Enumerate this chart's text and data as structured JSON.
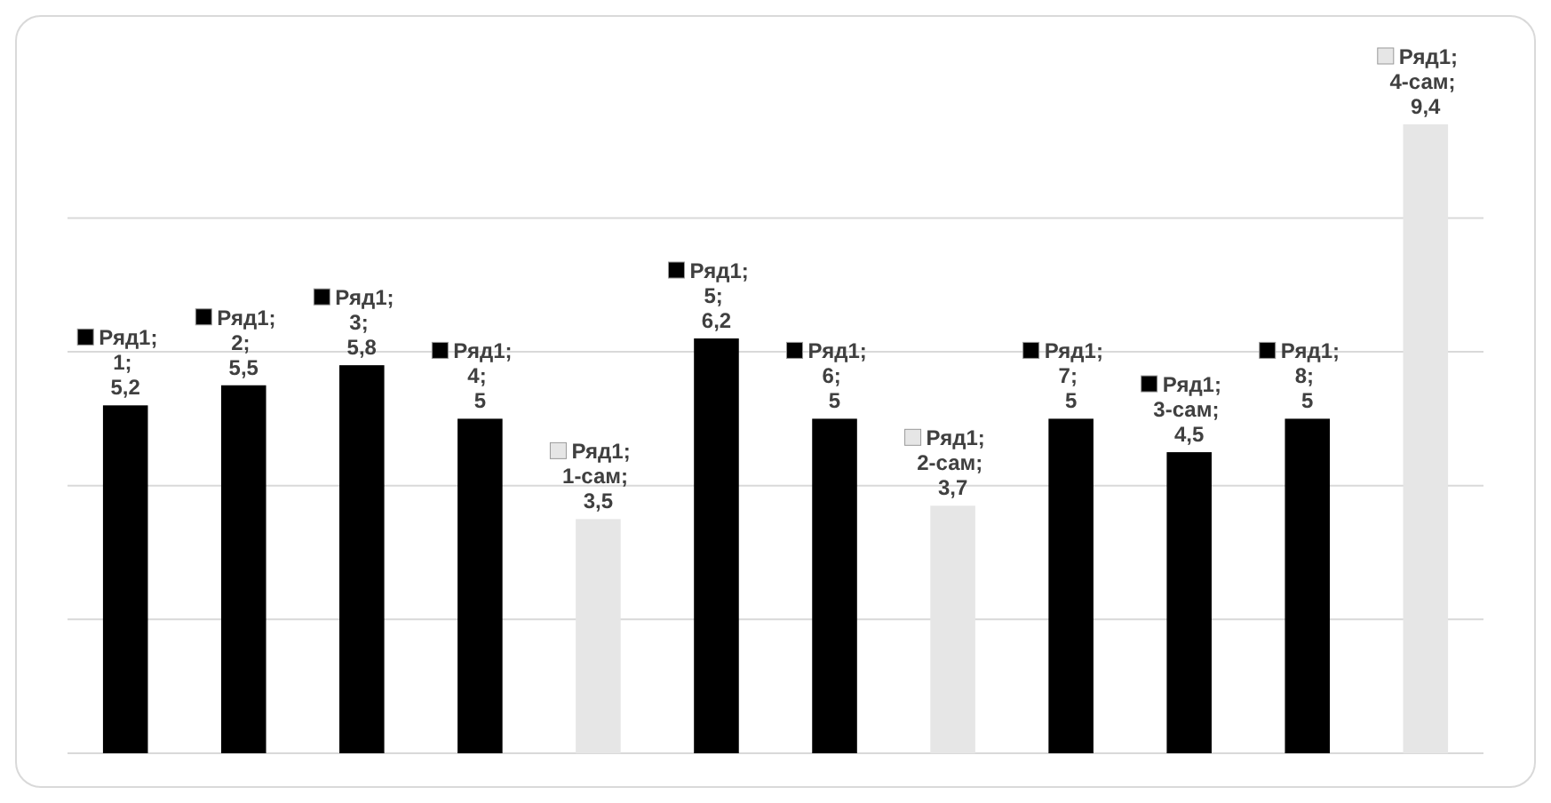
{
  "chart_data": {
    "type": "bar",
    "categories": [
      null,
      null,
      null,
      null,
      null,
      null,
      null,
      null,
      null,
      null,
      null,
      null
    ],
    "series": [
      {
        "values": [
          5.2,
          5.5,
          5.8,
          5,
          3.5,
          6.2,
          5,
          3.7,
          5,
          4.5,
          5,
          9.4
        ],
        "colors": [
          "#000000",
          "#000000",
          "#000000",
          "#000000",
          "#e6e6e6",
          "#000000",
          "#000000",
          "#e6e6e6",
          "#000000",
          "#000000",
          "#000000",
          "#e6e6e6"
        ],
        "value_labels": [
          "Ряд1; 1; 5,2",
          "Ряд1; 2; 5,5",
          "Ряд1; 3; 5,8",
          "Ряд1; 4; 5",
          "Ряд1; 1-сам; 3,5",
          "Ряд1; 5; 6,2",
          "Ряд1; 6; 5",
          "Ряд1; 2-сам; 3,7",
          "Ряд1; 7; 5",
          "Ряд1; 3-сам; 4,5",
          "Ряд1; 8; 5",
          "Ряд1; 4-сам; 9,4"
        ]
      }
    ],
    "grid": true
  }
}
